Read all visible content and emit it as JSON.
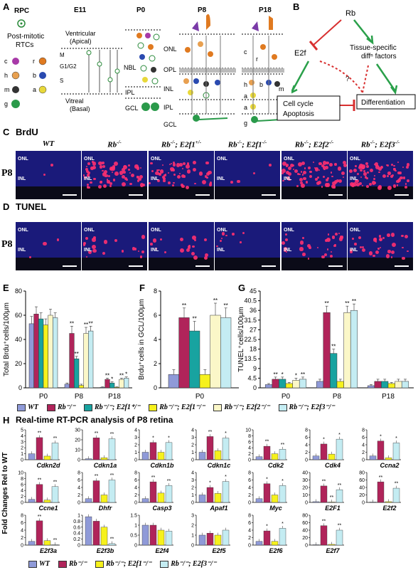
{
  "panels": {
    "A": "A",
    "B": "B",
    "C": "C",
    "D": "D",
    "E": "E",
    "F": "F",
    "G": "G",
    "H": "H"
  },
  "colors": {
    "wt": "#8f9ad8",
    "rb": "#b0245a",
    "e2f1het": "#18a3a0",
    "e2f1": "#f6f11c",
    "e2f2": "#fbf7c8",
    "e2f3": "#c4ecf2"
  },
  "panelA": {
    "rpc_label": "RPC",
    "postmitotic_label": "Post-mitotic RTCs",
    "cell_types": [
      "c",
      "r",
      "h",
      "b",
      "m",
      "a",
      "g"
    ],
    "stages": [
      "E11",
      "P0",
      "P8",
      "P18"
    ],
    "ventricular": "Ventricular (Apical)",
    "vitreal": "Vitreal (Basal)",
    "phases": [
      "M",
      "G1/G2",
      "S"
    ],
    "p0_layers": [
      "NBL",
      "IPL",
      "GCL"
    ],
    "p8_layers": [
      "ONL",
      "OPL",
      "INL",
      "IPL",
      "GCL"
    ],
    "p18_cells": [
      "c",
      "r",
      "h",
      "b",
      "m",
      "a",
      "g"
    ]
  },
  "panelB": {
    "rb": "Rb",
    "e2f": "E2f",
    "tissue": "Tissue-specific",
    "diff_factors": "diffⁿ factors",
    "question": "?",
    "cellcycle": "Cell cycle",
    "apoptosis": "Apoptosis",
    "differentiation": "Differentiation"
  },
  "panelC": {
    "assay": "BrdU",
    "age": "P8"
  },
  "panelD": {
    "assay": "TUNEL",
    "age": "P8"
  },
  "genotypes": [
    {
      "base": "WT",
      "sup": ""
    },
    {
      "base": "Rb",
      "sup": "-/-"
    },
    {
      "base": "Rb",
      "sup": "-/-",
      "extra": "; E2f1",
      "extra_sup": "+/-"
    },
    {
      "base": "Rb",
      "sup": "-/-",
      "extra": "; E2f1",
      "extra_sup": "-/-"
    },
    {
      "base": "Rb",
      "sup": "-/-",
      "extra": "; E2f2",
      "extra_sup": "-/-"
    },
    {
      "base": "Rb",
      "sup": "-/-",
      "extra": "; E2f3",
      "extra_sup": "-/-"
    }
  ],
  "layer_labels": {
    "onl": "ONL",
    "inl": "INL"
  },
  "chart_data": [
    {
      "id": "E",
      "type": "bar",
      "ylabel": "Total Brdu⁺cells/100μm",
      "categories": [
        "P0",
        "P8",
        "P18"
      ],
      "ylim": [
        0,
        80
      ],
      "yticks": [
        0,
        20,
        40,
        60,
        80
      ],
      "series": [
        {
          "name": "WT",
          "values": [
            53,
            3,
            0.5
          ]
        },
        {
          "name": "Rb-/-",
          "values": [
            61,
            45,
            7
          ]
        },
        {
          "name": "Rb-/-; E2f1+/-",
          "values": [
            57,
            24,
            4
          ]
        },
        {
          "name": "Rb-/-; E2f1-/-",
          "values": [
            52,
            2,
            0.5
          ]
        },
        {
          "name": "Rb-/-; E2f2-/-",
          "values": [
            60,
            45,
            7
          ]
        },
        {
          "name": "Rb-/-; E2f3-/-",
          "values": [
            58,
            47,
            8
          ]
        }
      ],
      "errors": [
        [
          6,
          1,
          0.3
        ],
        [
          6,
          6,
          1
        ],
        [
          5,
          2,
          1
        ],
        [
          5,
          1,
          0.3
        ],
        [
          5,
          5,
          1
        ],
        [
          4,
          4,
          1
        ]
      ],
      "stars": [
        [
          "",
          "",
          ""
        ],
        [
          "",
          "**",
          "**"
        ],
        [
          "",
          "**",
          "*"
        ],
        [
          "",
          "",
          ""
        ],
        [
          "",
          "**",
          "**"
        ],
        [
          "",
          "**",
          "*"
        ]
      ]
    },
    {
      "id": "F",
      "type": "bar",
      "ylabel": "Brdu⁺cells in GCL/100μm",
      "categories": [
        "P0"
      ],
      "ylim": [
        0,
        8
      ],
      "yticks": [
        0,
        2,
        4,
        6,
        8
      ],
      "series": [
        {
          "name": "WT",
          "values": [
            1.1
          ]
        },
        {
          "name": "Rb-/-",
          "values": [
            5.8
          ]
        },
        {
          "name": "Rb-/-; E2f1+/-",
          "values": [
            4.7
          ]
        },
        {
          "name": "Rb-/-; E2f1-/-",
          "values": [
            1.1
          ]
        },
        {
          "name": "Rb-/-; E2f2-/-",
          "values": [
            6.0
          ]
        },
        {
          "name": "Rb-/-; E2f3-/-",
          "values": [
            5.8
          ]
        }
      ],
      "errors": [
        [
          0.4
        ],
        [
          0.8
        ],
        [
          0.8
        ],
        [
          0.4
        ],
        [
          1.0
        ],
        [
          0.8
        ]
      ],
      "stars": [
        [
          ""
        ],
        [
          "**"
        ],
        [
          "**"
        ],
        [
          ""
        ],
        [
          "**"
        ],
        [
          "**"
        ]
      ]
    },
    {
      "id": "G",
      "type": "bar",
      "ylabel": "TUNEL⁺cells/100μm",
      "categories": [
        "P0",
        "P8",
        "P18"
      ],
      "ylim": [
        0,
        45
      ],
      "yticks": [
        0,
        4.5,
        9,
        13.5,
        18,
        22.5,
        27,
        31.5,
        36,
        40.5,
        45
      ],
      "series": [
        {
          "name": "WT",
          "values": [
            1.5,
            3,
            1
          ]
        },
        {
          "name": "Rb-/-",
          "values": [
            4,
            35,
            3
          ]
        },
        {
          "name": "Rb-/-; E2f1+/-",
          "values": [
            4,
            16,
            3
          ]
        },
        {
          "name": "Rb-/-; E2f1-/-",
          "values": [
            2,
            3,
            2
          ]
        },
        {
          "name": "Rb-/-; E2f2-/-",
          "values": [
            3.5,
            35,
            3
          ]
        },
        {
          "name": "Rb-/-; E2f3-/-",
          "values": [
            4,
            36,
            3
          ]
        }
      ],
      "errors": [
        [
          0.5,
          1,
          0.5
        ],
        [
          1,
          3,
          1
        ],
        [
          1,
          2,
          1
        ],
        [
          0.5,
          1,
          0.5
        ],
        [
          1,
          3,
          1
        ],
        [
          1,
          3,
          1
        ]
      ],
      "stars": [
        [
          "",
          "",
          ""
        ],
        [
          "**",
          "**",
          ""
        ],
        [
          "*",
          "**",
          ""
        ],
        [
          "",
          "",
          " "
        ],
        [
          "*",
          "**",
          ""
        ],
        [
          "**",
          "**",
          ""
        ]
      ]
    }
  ],
  "legend_efg": [
    {
      "key": "wt",
      "label": "WT"
    },
    {
      "key": "rb",
      "label": "Rb⁻/⁻"
    },
    {
      "key": "e2f1het",
      "label": "Rb⁻/⁻; E2f1⁺/⁻"
    },
    {
      "key": "e2f1",
      "label": "Rb⁻/⁻; E2f1⁻/⁻"
    },
    {
      "key": "e2f2",
      "label": "Rb⁻/⁻; E2f2⁻/⁻"
    },
    {
      "key": "e2f3",
      "label": "Rb⁻/⁻; E2f3⁻/⁻"
    }
  ],
  "panelH": {
    "title": "Real-time RT-PCR analysis of P8 retina",
    "ylabel": "Fold Changes Rel to WT",
    "series": [
      "WT",
      "Rb-/-",
      "Rb-/-; E2f1-/-",
      "Rb-/-; E2f3-/-"
    ],
    "genes": [
      {
        "name": "Cdkn2d",
        "max": 5,
        "ticks": [
          0,
          1,
          2,
          3,
          4,
          5
        ],
        "values": [
          1,
          3.7,
          0.6,
          2.8
        ],
        "stars": [
          "",
          "**",
          "",
          "**"
        ]
      },
      {
        "name": "Cdkn1a",
        "max": 30,
        "ticks": [
          0,
          10,
          20,
          30
        ],
        "values": [
          1,
          22,
          2,
          21
        ],
        "stars": [
          "",
          "**",
          "",
          "**"
        ]
      },
      {
        "name": "Cdkn1b",
        "max": 4,
        "ticks": [
          0,
          1,
          2,
          3,
          4
        ],
        "values": [
          1,
          2.3,
          1,
          2.3
        ],
        "stars": [
          "",
          "*",
          "",
          "*"
        ]
      },
      {
        "name": "Cdkn1c",
        "max": 4,
        "ticks": [
          0,
          1,
          2,
          3,
          4
        ],
        "values": [
          1,
          3.1,
          1.2,
          2.9
        ],
        "stars": [
          "",
          "**",
          "",
          "*"
        ]
      },
      {
        "name": "Cdk2",
        "max": 10,
        "ticks": [
          0,
          2,
          4,
          6,
          8,
          10
        ],
        "values": [
          1,
          4.5,
          2,
          3.5
        ],
        "stars": [
          "",
          "**",
          "",
          "**"
        ]
      },
      {
        "name": "Cdk4",
        "max": 8,
        "ticks": [
          0,
          2,
          4,
          6,
          8
        ],
        "values": [
          1,
          4.2,
          1.5,
          5.5
        ],
        "stars": [
          "",
          "*",
          "",
          "*"
        ]
      },
      {
        "name": "Ccna2",
        "max": 8,
        "ticks": [
          0,
          2,
          4,
          6,
          8
        ],
        "values": [
          1,
          5,
          0.5,
          4.5
        ],
        "stars": [
          "",
          "*",
          "",
          "*"
        ]
      },
      {
        "name": "Ccne1",
        "max": 10,
        "ticks": [
          0,
          2,
          4,
          6,
          8,
          10
        ],
        "values": [
          1,
          6,
          0.8,
          5.3
        ],
        "stars": [
          "",
          "**",
          "",
          "**"
        ]
      },
      {
        "name": "Dhfr",
        "max": 8,
        "ticks": [
          0,
          2,
          4,
          6,
          8
        ],
        "values": [
          1,
          5.8,
          2,
          6
        ],
        "stars": [
          "",
          "**",
          "",
          "**"
        ]
      },
      {
        "name": "Casp3",
        "max": 8,
        "ticks": [
          0,
          2,
          4,
          6,
          8
        ],
        "values": [
          1,
          5.5,
          2.5,
          4.5
        ],
        "stars": [
          "",
          "**",
          "",
          "**"
        ]
      },
      {
        "name": "Apaf1",
        "max": 4,
        "ticks": [
          0,
          1,
          2,
          3,
          4
        ],
        "values": [
          1,
          2,
          1.2,
          2.8
        ],
        "stars": [
          "",
          "*",
          "",
          "*"
        ]
      },
      {
        "name": "Myc",
        "max": 8,
        "ticks": [
          0,
          2,
          4,
          6,
          8
        ],
        "values": [
          1,
          5,
          2,
          4.5
        ],
        "stars": [
          "",
          "*",
          "",
          "*"
        ]
      },
      {
        "name": "E2F1",
        "max": 40,
        "ticks": [
          0,
          10,
          20,
          30,
          40
        ],
        "values": [
          1,
          22,
          0.5,
          17
        ],
        "stars": [
          "",
          "**",
          "**",
          "**"
        ]
      },
      {
        "name": "E2f2",
        "max": 80,
        "ticks": [
          0,
          20,
          40,
          60,
          80
        ],
        "values": [
          1,
          55,
          2,
          38
        ],
        "stars": [
          "",
          "**",
          "",
          "**"
        ]
      },
      {
        "name": "E2f3a",
        "max": 8,
        "ticks": [
          0,
          2,
          4,
          6,
          8
        ],
        "values": [
          1,
          6.5,
          1.2,
          0.1
        ],
        "stars": [
          "",
          "**",
          "",
          "**"
        ]
      },
      {
        "name": "E2f3b",
        "max": 1,
        "ticks": [
          0,
          0.2,
          0.4,
          0.6,
          0.8,
          1
        ],
        "values": [
          0.95,
          0.8,
          0.6,
          0.05
        ],
        "stars": [
          "",
          "",
          "",
          "**"
        ]
      },
      {
        "name": "E2f4",
        "max": 1.5,
        "ticks": [
          0,
          0.5,
          1,
          1.5
        ],
        "values": [
          1,
          1,
          0.75,
          0.7
        ],
        "stars": [
          "",
          "",
          "",
          ""
        ]
      },
      {
        "name": "E2f5",
        "max": 3,
        "ticks": [
          0,
          1,
          2,
          3
        ],
        "values": [
          1,
          1.2,
          1,
          1.5
        ],
        "stars": [
          "",
          "",
          "",
          ""
        ]
      },
      {
        "name": "E2f6",
        "max": 8,
        "ticks": [
          0,
          2,
          4,
          6,
          8
        ],
        "values": [
          1,
          3.8,
          1,
          4.5
        ],
        "stars": [
          "",
          "*",
          "",
          "*"
        ]
      },
      {
        "name": "E2f7",
        "max": 80,
        "ticks": [
          0,
          20,
          40,
          60,
          80
        ],
        "values": [
          1,
          52,
          2,
          40
        ],
        "stars": [
          "",
          "**",
          "",
          "**"
        ]
      }
    ]
  },
  "legend_h": [
    {
      "key": "wt",
      "label": "WT"
    },
    {
      "key": "rb",
      "label": "Rb⁻/⁻"
    },
    {
      "key": "e2f1",
      "label": "Rb⁻/⁻; E2f1⁻/⁻"
    },
    {
      "key": "e2f3",
      "label": "Rb⁻/⁻; E2f3⁻/⁻"
    }
  ]
}
